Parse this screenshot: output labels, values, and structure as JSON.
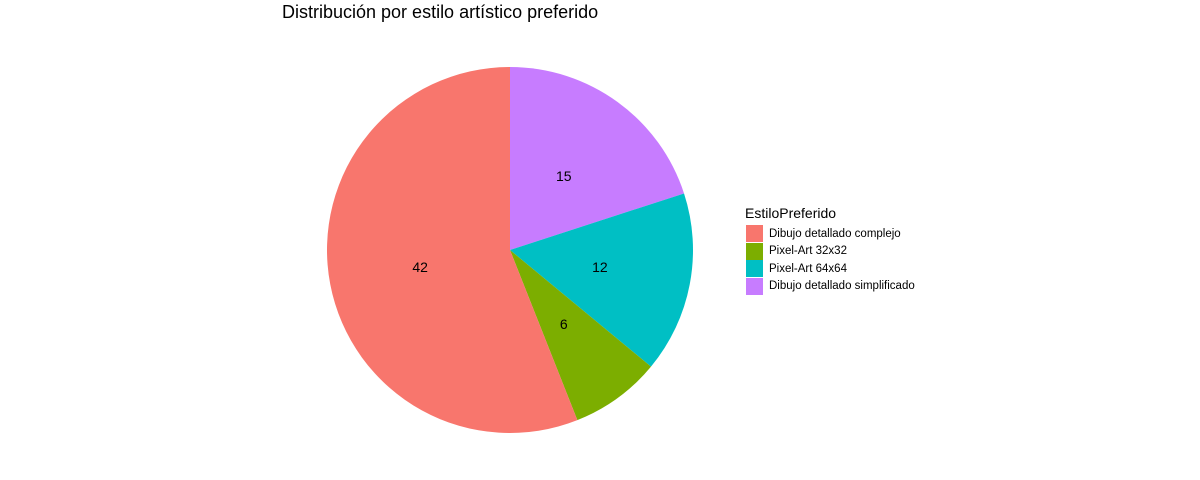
{
  "chart_data": {
    "type": "pie",
    "title": "Distribución por estilo artístico preferido",
    "legend_title": "EstiloPreferido",
    "legend_position": "right",
    "start": "top",
    "direction": "clockwise",
    "slice_order": [
      "Dibujo detallado simplificado",
      "Pixel-Art 64x64",
      "Pixel-Art 32x32",
      "Dibujo detallado complejo"
    ],
    "categories": [
      "Dibujo detallado complejo",
      "Pixel-Art 32x32",
      "Pixel-Art 64x64",
      "Dibujo detallado simplificado"
    ],
    "values": [
      42,
      6,
      12,
      15
    ],
    "labels": [
      "42",
      "6",
      "12",
      "15"
    ],
    "colors": [
      "#F8766D",
      "#7CAE00",
      "#00BFC4",
      "#C77CFF"
    ]
  }
}
